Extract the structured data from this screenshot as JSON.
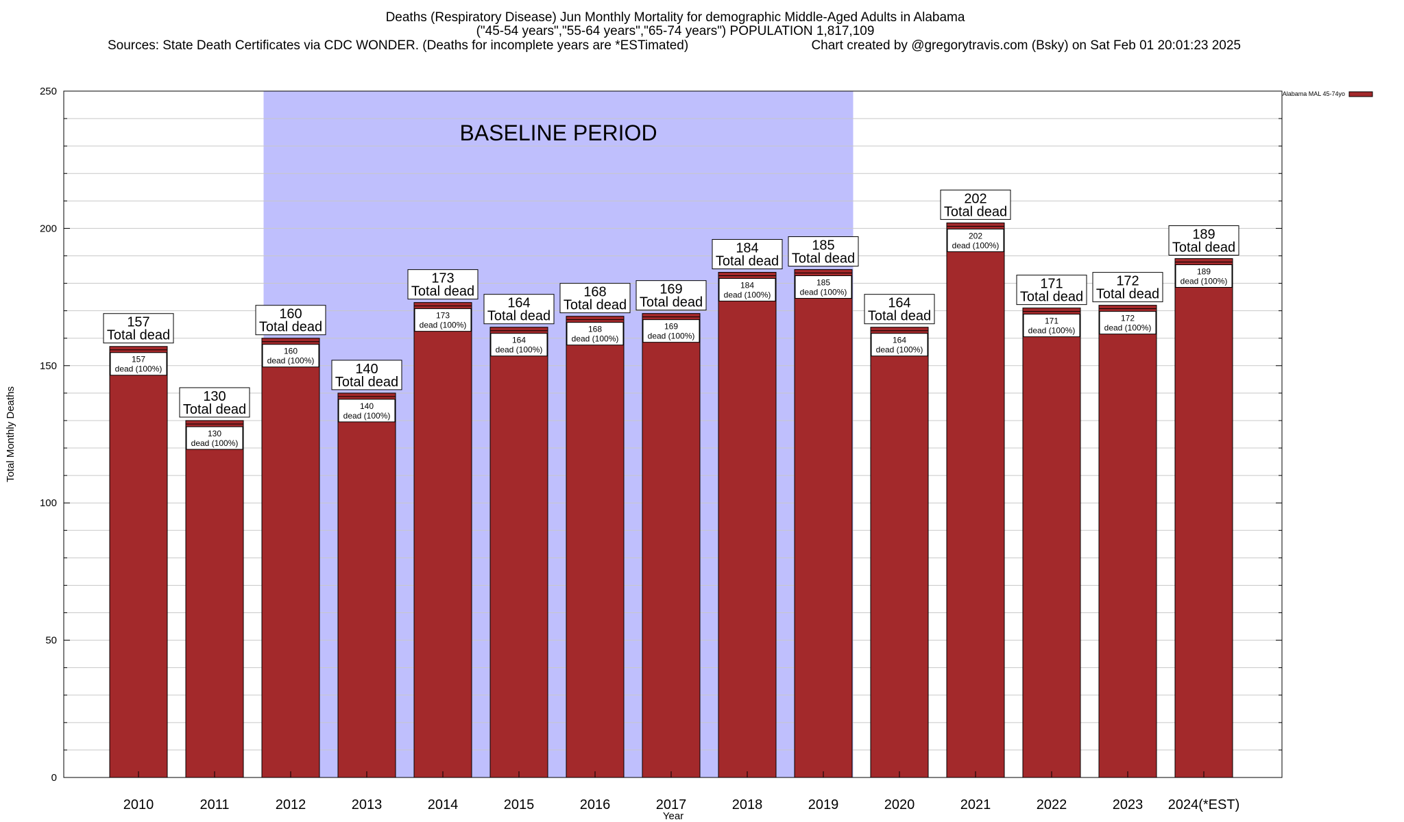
{
  "chart_data": {
    "type": "bar",
    "title": [
      "Deaths (Respiratory Disease) Jun Monthly Mortality for demographic Middle-Aged Adults in Alabama",
      "(\"45-54 years\",\"55-64 years\",\"65-74 years\") POPULATION 1,817,109"
    ],
    "sources": "Sources: State Death Certificates via CDC WONDER. (Deaths for incomplete years are *ESTimated)",
    "credit": "Chart created by @gregorytravis.com (Bsky) on Sat Feb 01 20:01:23 2025",
    "xlabel": "Year",
    "ylabel": "Total Monthly Deaths",
    "ylim": [
      0,
      250
    ],
    "yticks": [
      0,
      50,
      100,
      150,
      200,
      250
    ],
    "minor_grid_step": 10,
    "grid": true,
    "categories": [
      "2010",
      "2011",
      "2012",
      "2013",
      "2014",
      "2015",
      "2016",
      "2017",
      "2018",
      "2019",
      "2020",
      "2021",
      "2022",
      "2023",
      "2024(*EST)"
    ],
    "series": [
      {
        "name": "Alabama MAL 45-74yo",
        "values": [
          157,
          130,
          160,
          140,
          173,
          164,
          168,
          169,
          184,
          185,
          164,
          202,
          171,
          172,
          189
        ],
        "color": "#a3292b"
      }
    ],
    "bar_label_big_suffix": "Total dead",
    "bar_label_small_suffix": "dead (100%)",
    "baseline_period": {
      "label": "BASELINE PERIOD",
      "from": "2012",
      "to": "2019",
      "color": "#bfbffd"
    },
    "legend": {
      "placement": "top-right"
    }
  }
}
